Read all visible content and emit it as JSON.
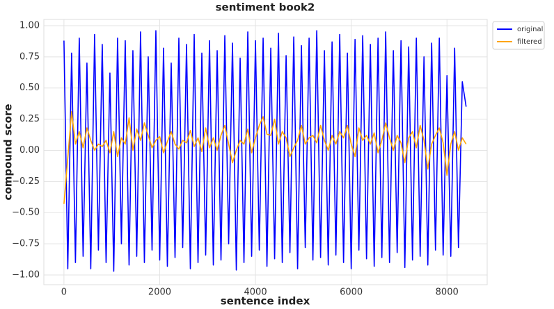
{
  "chart_data": {
    "type": "line",
    "title": "sentiment book2",
    "xlabel": "sentence index",
    "ylabel": "compound score",
    "x": [
      0,
      80,
      160,
      240,
      320,
      400,
      480,
      560,
      640,
      720,
      800,
      880,
      960,
      1040,
      1120,
      1200,
      1280,
      1360,
      1440,
      1520,
      1600,
      1680,
      1760,
      1840,
      1920,
      2000,
      2080,
      2160,
      2240,
      2320,
      2400,
      2480,
      2560,
      2640,
      2720,
      2800,
      2880,
      2960,
      3040,
      3120,
      3200,
      3280,
      3360,
      3440,
      3520,
      3600,
      3680,
      3760,
      3840,
      3920,
      4000,
      4080,
      4160,
      4240,
      4320,
      4400,
      4480,
      4560,
      4640,
      4720,
      4800,
      4880,
      4960,
      5040,
      5120,
      5200,
      5280,
      5360,
      5440,
      5520,
      5600,
      5680,
      5760,
      5840,
      5920,
      6000,
      6080,
      6160,
      6240,
      6320,
      6400,
      6480,
      6560,
      6640,
      6720,
      6800,
      6880,
      6960,
      7040,
      7120,
      7200,
      7280,
      7360,
      7440,
      7520,
      7600,
      7680,
      7760,
      7840,
      7920,
      8000,
      8080,
      8160,
      8240,
      8320,
      8400
    ],
    "series": [
      {
        "name": "original",
        "color": "#0000ff",
        "values": [
          0.88,
          -0.95,
          0.78,
          -0.9,
          0.9,
          -0.85,
          0.7,
          -0.95,
          0.93,
          -0.8,
          0.85,
          -0.9,
          0.62,
          -0.97,
          0.9,
          -0.75,
          0.88,
          -0.92,
          0.8,
          -0.85,
          0.95,
          -0.9,
          0.75,
          -0.8,
          0.96,
          -0.88,
          0.82,
          -0.93,
          0.7,
          -0.86,
          0.9,
          -0.78,
          0.85,
          -0.95,
          0.93,
          -0.9,
          0.78,
          -0.84,
          0.88,
          -0.92,
          0.8,
          -0.88,
          0.92,
          -0.75,
          0.86,
          -0.96,
          0.74,
          -0.9,
          0.95,
          -0.85,
          0.88,
          -0.8,
          0.9,
          -0.93,
          0.82,
          -0.87,
          0.94,
          -0.9,
          0.76,
          -0.82,
          0.91,
          -0.95,
          0.84,
          -0.78,
          0.9,
          -0.88,
          0.96,
          -0.86,
          0.8,
          -0.92,
          0.87,
          -0.84,
          0.93,
          -0.9,
          0.78,
          -0.95,
          0.89,
          -0.8,
          0.92,
          -0.87,
          0.85,
          -0.93,
          0.9,
          -0.86,
          0.95,
          -0.9,
          0.8,
          -0.82,
          0.88,
          -0.94,
          0.83,
          -0.88,
          0.9,
          -0.85,
          0.75,
          -0.92,
          0.86,
          -0.8,
          0.9,
          -0.84,
          0.6,
          -0.85,
          0.82,
          -0.78,
          0.55,
          0.35
        ]
      },
      {
        "name": "filtered",
        "color": "#ffa500",
        "values": [
          -0.43,
          -0.06,
          0.31,
          0.05,
          0.15,
          0.02,
          0.18,
          0.08,
          0.0,
          0.05,
          0.03,
          0.08,
          -0.02,
          0.15,
          -0.05,
          0.1,
          0.05,
          0.26,
          0.0,
          0.17,
          0.08,
          0.22,
          0.12,
          0.02,
          0.08,
          0.11,
          -0.02,
          0.07,
          0.15,
          0.05,
          0.01,
          0.08,
          0.06,
          0.16,
          0.03,
          0.1,
          -0.01,
          0.18,
          0.02,
          0.1,
          0.0,
          0.12,
          0.2,
          0.05,
          -0.1,
          0.0,
          0.08,
          0.05,
          0.17,
          -0.02,
          0.1,
          0.2,
          0.27,
          0.13,
          0.12,
          0.25,
          0.05,
          0.15,
          0.1,
          -0.05,
          0.02,
          0.08,
          0.2,
          0.05,
          0.1,
          0.12,
          0.06,
          0.2,
          0.08,
          0.0,
          0.12,
          0.05,
          0.15,
          0.1,
          0.2,
          0.05,
          -0.05,
          0.18,
          0.08,
          0.12,
          0.05,
          0.14,
          -0.02,
          0.08,
          0.22,
          0.1,
          0.0,
          0.12,
          0.06,
          -0.1,
          0.1,
          0.15,
          0.02,
          0.2,
          0.08,
          -0.15,
          0.05,
          0.12,
          0.18,
          0.06,
          -0.2,
          0.05,
          0.15,
          0.0,
          0.1,
          0.05
        ]
      }
    ],
    "xlim": [
      -420,
      8840
    ],
    "xticks": [
      0,
      2000,
      4000,
      6000,
      8000
    ],
    "ylim": [
      -1.078,
      1.05
    ],
    "yticks": [
      {
        "value": -1,
        "label": "−1.00"
      },
      {
        "value": -0.75,
        "label": "−0.75"
      },
      {
        "value": -0.5,
        "label": "−0.50"
      },
      {
        "value": -0.25,
        "label": "−0.25"
      },
      {
        "value": 0,
        "label": "0.00"
      },
      {
        "value": 0.25,
        "label": "0.25"
      },
      {
        "value": 0.5,
        "label": "0.50"
      },
      {
        "value": 0.75,
        "label": "0.75"
      },
      {
        "value": 1,
        "label": "1.00"
      }
    ],
    "grid": true,
    "legend": "outside upper right"
  }
}
